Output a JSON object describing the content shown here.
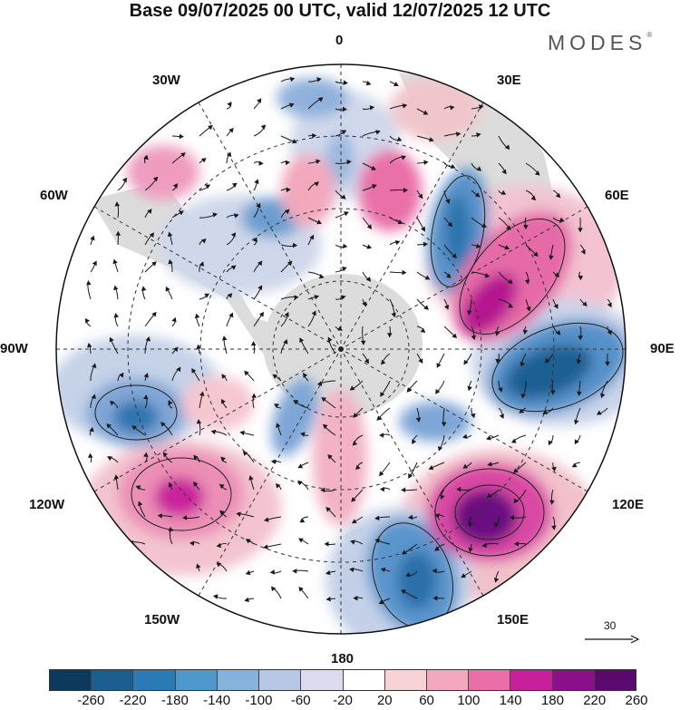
{
  "title": "Base 09/07/2025 00 UTC, valid 12/07/2025 12 UTC",
  "brand": "MODES",
  "brand_mark": "®",
  "longitude_labels": [
    "0",
    "30E",
    "60E",
    "90E",
    "120E",
    "150E",
    "180",
    "150W",
    "120W",
    "90W",
    "60W",
    "30W"
  ],
  "wind_scale_label": "30",
  "colorbar": {
    "colors": [
      "#0d3a5c",
      "#1a5f8f",
      "#2a7ab5",
      "#4d98cc",
      "#86b3dc",
      "#b8c8e4",
      "#dcdcee",
      "#ffffff",
      "#f8d3d6",
      "#f3a8bd",
      "#ea6fa9",
      "#c8209a",
      "#8a0f8a",
      "#5a0a6e"
    ],
    "tick_labels": [
      "-260",
      "-220",
      "-180",
      "-140",
      "-100",
      "-60",
      "-20",
      "20",
      "60",
      "100",
      "140",
      "180",
      "220",
      "260"
    ]
  }
}
